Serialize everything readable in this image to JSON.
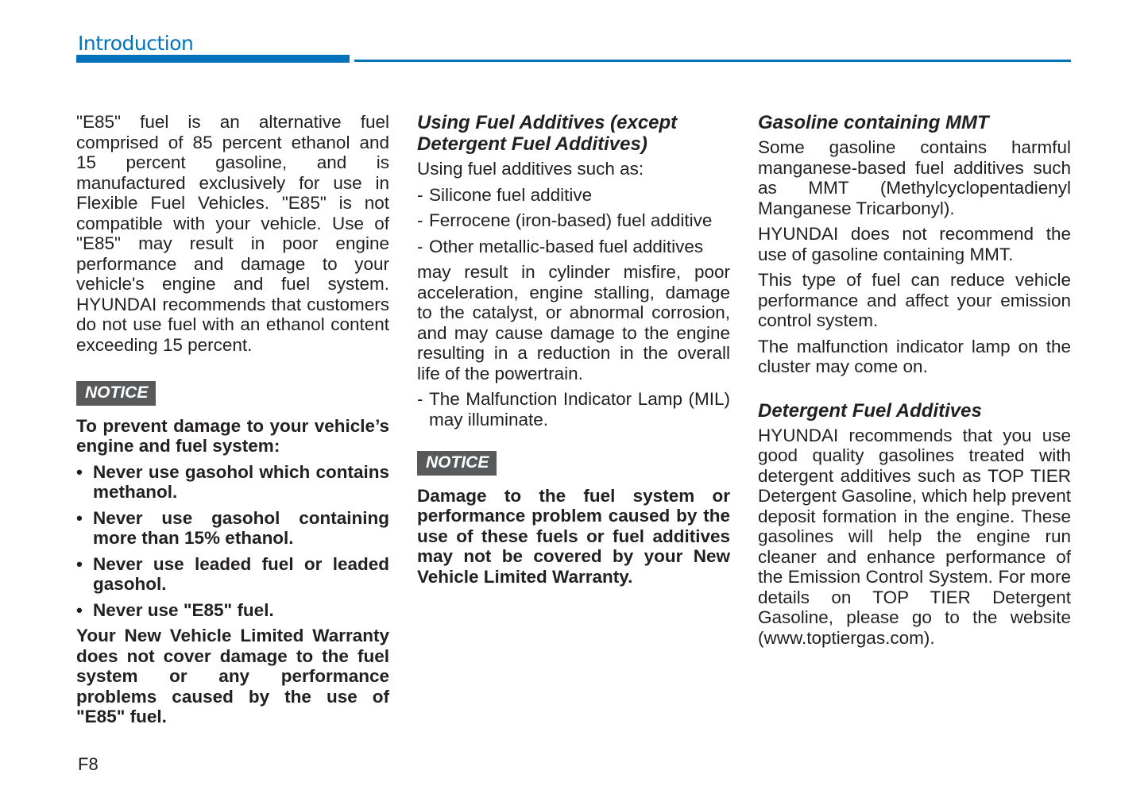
{
  "header": {
    "section_title": "Introduction",
    "accent_color": "#0072bc"
  },
  "col1": {
    "intro": "\"E85\" fuel is an alternative fuel comprised of 85 percent ethanol and 15 percent gasoline, and is manufactured exclusively for use in Flexible Fuel Vehicles. \"E85\" is not compatible with your vehicle. Use of \"E85\" may result in poor engine performance and damage to your vehicle's engine and fuel system. HYUNDAI recommends that customers do not use fuel with an ethanol content exceeding 15 percent.",
    "notice_label": "NOTICE",
    "notice_lead": "To prevent damage to your vehicle’s engine and fuel system:",
    "bullets": [
      "Never use gasohol which contains methanol.",
      "Never use gasohol containing more than 15% ethanol.",
      "Never use leaded fuel or leaded gasohol.",
      "Never use \"E85\" fuel."
    ],
    "warranty": "Your New Vehicle Limited Warranty does not cover damage to the fuel system or any performance problems caused by the use of \"E85\" fuel."
  },
  "col2": {
    "heading": "Using Fuel Additives (except Detergent Fuel Additives)",
    "lead": "Using fuel additives such as:",
    "items": [
      "Silicone fuel additive",
      "Ferrocene (iron-based) fuel additive",
      "Other metallic-based fuel additives"
    ],
    "result": "may result in cylinder misfire, poor acceleration, engine stalling, damage to the catalyst, or abnormal corrosion, and may cause damage to the engine resulting in a reduction in the overall life of the powertrain.",
    "mil": "The Malfunction Indicator Lamp (MIL) may illuminate.",
    "notice_label": "NOTICE",
    "notice_text": "Damage to the fuel system or performance problem caused by the use of these fuels or fuel additives may not be covered by your New Vehicle Limited Warranty."
  },
  "col3": {
    "heading1": "Gasoline containing MMT",
    "p1": "Some gasoline contains harmful manganese-based fuel additives such as MMT (Methylcyclopentadienyl Manganese Tricarbonyl).",
    "p2": "HYUNDAI does not recommend the use of gasoline containing MMT.",
    "p3": "This type of fuel can reduce vehicle performance and affect your emission control system.",
    "p4": "The malfunction indicator lamp on the cluster may come on.",
    "heading2": "Detergent Fuel Additives",
    "p5": "HYUNDAI recommends that you use good quality gasolines treated with detergent additives such as TOP TIER Detergent Gasoline, which help prevent deposit formation in the engine. These gasolines will help the engine run cleaner and enhance performance of the Emission Control System. For more details on TOP TIER Detergent Gasoline, please go to the website (",
    "link": "www.toptiergas.com",
    "p5_end": ")."
  },
  "footer": {
    "page_number": "F8"
  }
}
